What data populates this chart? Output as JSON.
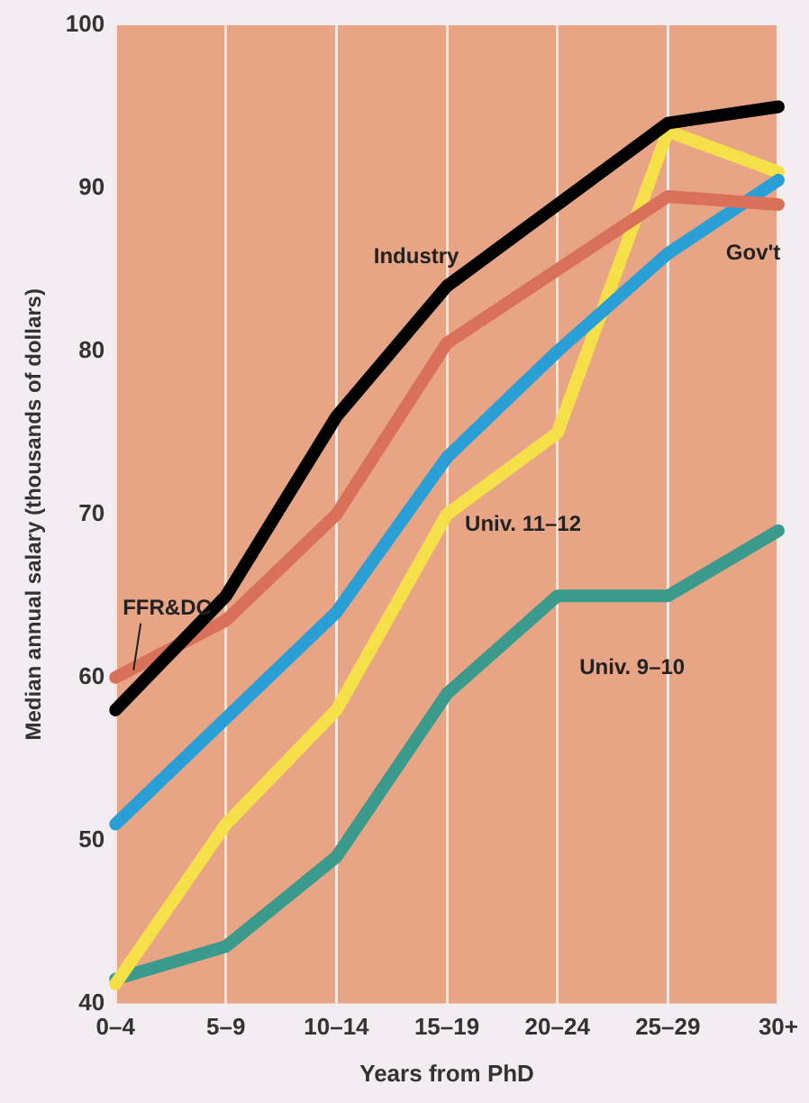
{
  "chart_data": {
    "type": "line",
    "xlabel": "Years from PhD",
    "ylabel": "Median annual salary (thousands of dollars)",
    "categories": [
      "0–4",
      "5–9",
      "10–14",
      "15–19",
      "20–24",
      "25–29",
      "30+"
    ],
    "series": [
      {
        "name": "Industry",
        "color": "#000000",
        "values": [
          58,
          65,
          76,
          84,
          89,
          94,
          95
        ]
      },
      {
        "name": "FFR&DC",
        "color": "#d9705a",
        "values": [
          60,
          63.5,
          70,
          80.5,
          85,
          89.5,
          89
        ]
      },
      {
        "name": "Gov't",
        "color": "#2a9fd6",
        "values": [
          51,
          57.5,
          64,
          73.5,
          80,
          86,
          90.5
        ]
      },
      {
        "name": "Univ. 11–12",
        "color": "#f5e04a",
        "values": [
          41.2,
          51,
          58,
          70,
          75,
          93.5,
          91
        ]
      },
      {
        "name": "Univ. 9–10",
        "color": "#3a9a8c",
        "values": [
          41.5,
          43.5,
          49,
          59,
          65,
          65,
          69
        ]
      }
    ],
    "ylim": [
      40,
      100
    ],
    "yticks": [
      40,
      50,
      60,
      70,
      80,
      90,
      100
    ],
    "grid": "x",
    "legend": false,
    "marker": "none",
    "line_style": "solid"
  }
}
